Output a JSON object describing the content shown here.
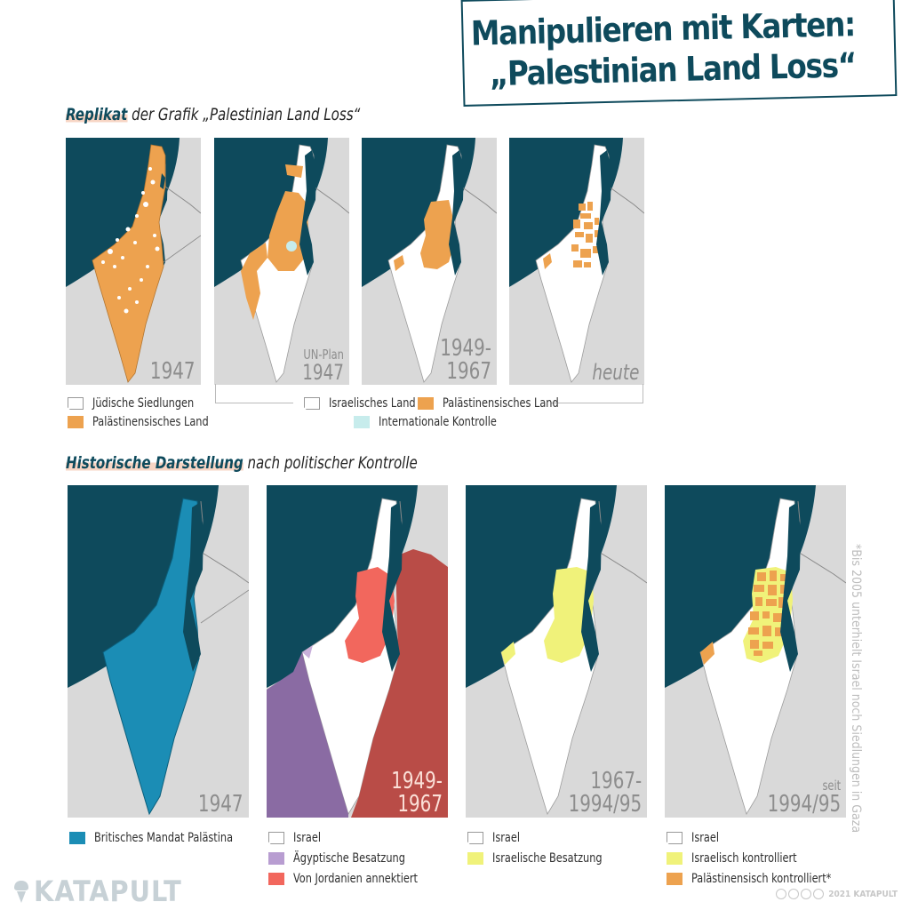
{
  "title": {
    "line1": "Manipulieren mit Karten:",
    "line2": "„Palestinian Land Loss“"
  },
  "section1": {
    "highlight": "Replikat",
    "rest": " der Grafik „Palestinian Land Loss“"
  },
  "section2": {
    "highlight": "Historische Darstellung",
    "rest": " nach politischer Kontrolle"
  },
  "top_panels": [
    {
      "label": "1947",
      "sublabel": ""
    },
    {
      "label": "1947",
      "sublabel": "UN-Plan"
    },
    {
      "label": "1949-\n1967",
      "sublabel": ""
    },
    {
      "label": "heute",
      "sublabel": ""
    }
  ],
  "bottom_panels": [
    {
      "label": "1947",
      "sublabel": ""
    },
    {
      "label": "1949-\n1967",
      "sublabel": ""
    },
    {
      "label": "1967-\n1994/95",
      "sublabel": ""
    },
    {
      "label": "1994/95",
      "sublabel": "seit"
    }
  ],
  "legends": {
    "top_left": [
      "Jüdische Siedlungen",
      "Palästinensisches Land"
    ],
    "top_right": [
      "Israelisches Land",
      "Palästinensisches Land",
      "Internationale Kontrolle"
    ],
    "bottom1": [
      "Britisches Mandat Palästina"
    ],
    "bottom2": [
      "Israel",
      "Ägyptische Besatzung",
      "Von Jordanien annektiert"
    ],
    "bottom3": [
      "Israel",
      "Israelische Besatzung"
    ],
    "bottom4": [
      "Israel",
      "Israelisch kontrolliert",
      "Palästinensisch kontrolliert*"
    ]
  },
  "footnote": "*Bis 2005 unterhielt Israel noch Siedlungen in Gaza",
  "logo": "KATAPULT",
  "copyright": "2021 KATAPULT",
  "colors": {
    "sea": "#0e4a5c",
    "land_grey": "#d9d9d9",
    "palestinian_orange": "#eda24f",
    "international_light_blue": "#c7ecec",
    "british_mandate_blue": "#1b8db5",
    "egyptian_purple": "#8a6ba3",
    "jordan_red": "#b94c47",
    "west_bank_red": "#f2675d",
    "israeli_occupation_yellow": "#f0f27a",
    "title_teal": "#0e4a5c",
    "highlight_pink": "#f7d5c4"
  }
}
